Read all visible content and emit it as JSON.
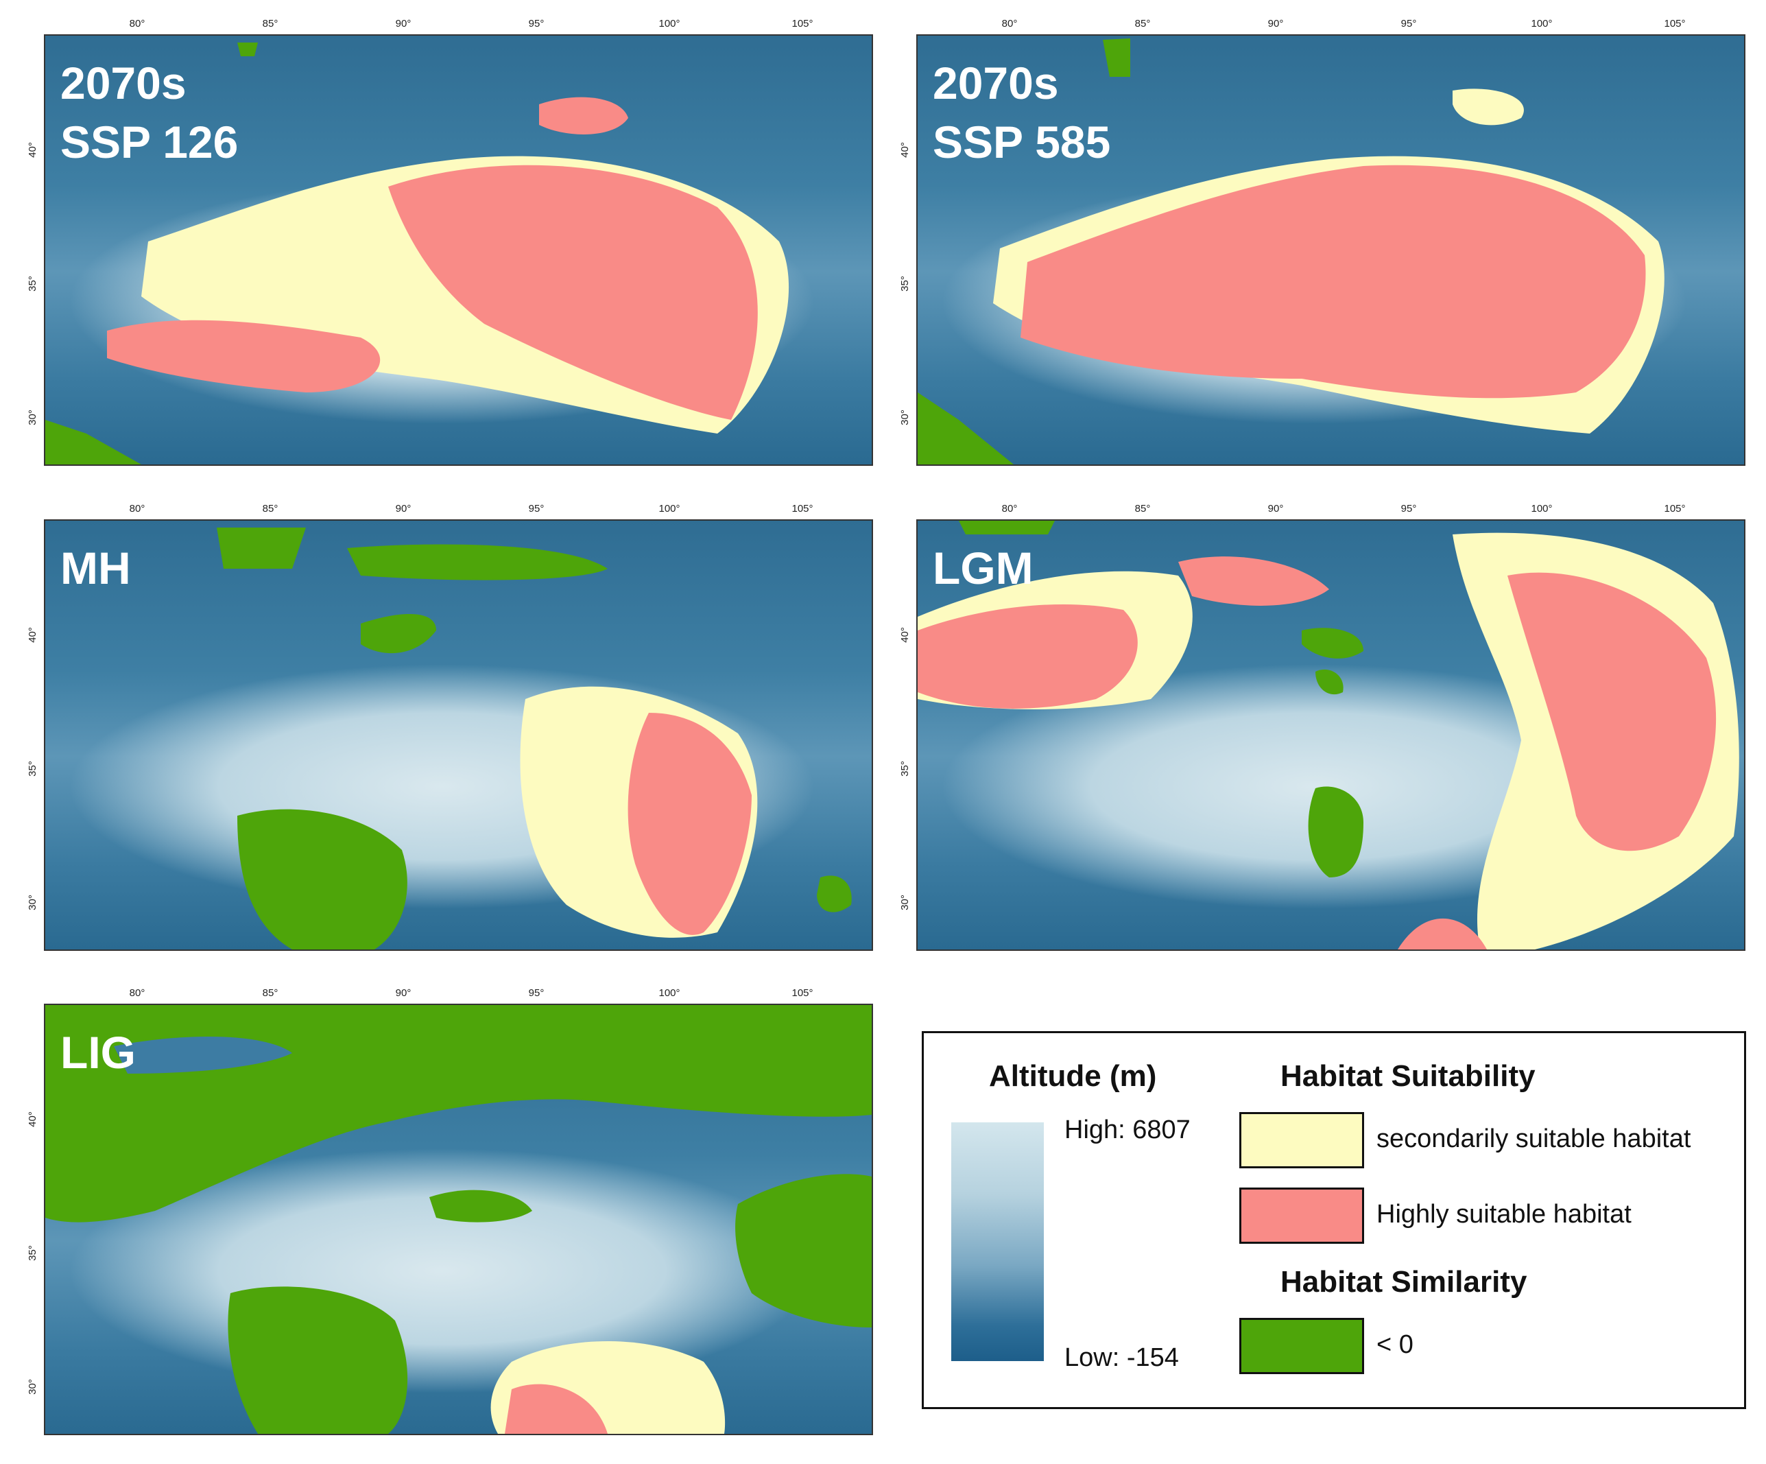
{
  "colors": {
    "secondarily_suitable": "#fdfbc0",
    "highly_suitable": "#f98b87",
    "similarity_negative": "#4ea50a",
    "altitude_high": "#d3e6ed",
    "altitude_low": "#1d5e8a"
  },
  "axes": {
    "lon_ticks": [
      "80°",
      "85°",
      "90°",
      "95°",
      "100°",
      "105°"
    ],
    "lat_ticks": [
      "40°",
      "35°",
      "30°"
    ]
  },
  "panels": [
    {
      "label": "2070s\nSSP 126"
    },
    {
      "label": "2070s\nSSP 585"
    },
    {
      "label": "MH"
    },
    {
      "label": "LGM"
    },
    {
      "label": "LIG"
    }
  ],
  "legend": {
    "altitude_title": "Altitude (m)",
    "altitude_high": "High: 6807",
    "altitude_low": "Low: -154",
    "suitability_title": "Habitat Suitability",
    "suitability_items": [
      "secondarily suitable habitat",
      "Highly suitable habitat"
    ],
    "similarity_title": "Habitat Similarity",
    "similarity_items": [
      "< 0"
    ]
  }
}
